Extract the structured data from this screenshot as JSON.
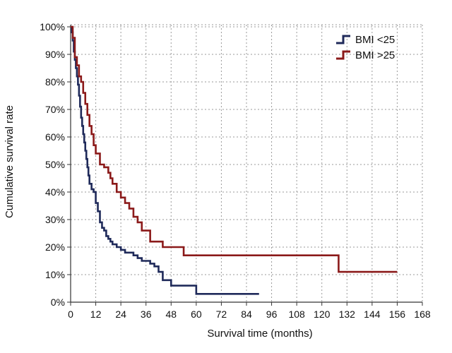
{
  "chart_data": {
    "type": "line",
    "subtype": "kaplan-meier-step",
    "title": "",
    "xlabel": "Survival time (months)",
    "ylabel": "Cumulative survival rate",
    "xlim": [
      0,
      168
    ],
    "ylim": [
      0,
      100
    ],
    "x_ticks": [
      0,
      12,
      24,
      36,
      48,
      60,
      72,
      84,
      96,
      108,
      120,
      132,
      144,
      156,
      168
    ],
    "y_ticks": [
      0,
      10,
      20,
      30,
      40,
      50,
      60,
      70,
      80,
      90,
      100
    ],
    "y_tick_labels": [
      "0%",
      "10%",
      "20%",
      "30%",
      "40%",
      "50%",
      "60%",
      "70%",
      "80%",
      "90%",
      "100%"
    ],
    "grid": true,
    "grid_style": "dotted",
    "legend_position": "top-right",
    "series": [
      {
        "name": "BMI <25",
        "color": "#1f2a5a",
        "x": [
          0,
          0.5,
          1,
          1.5,
          2,
          2.5,
          3,
          3.5,
          4,
          4.5,
          5,
          5.5,
          6,
          6.5,
          7,
          7.5,
          8,
          8.5,
          9,
          10,
          11,
          12,
          13,
          14,
          15,
          16,
          17,
          18,
          19,
          20,
          22,
          24,
          26,
          28,
          30,
          32,
          34,
          36,
          38,
          40,
          42,
          44,
          46,
          48,
          50,
          60,
          90
        ],
        "y": [
          100,
          98,
          95,
          91,
          88,
          85,
          82,
          79,
          75,
          71,
          67,
          64,
          61,
          58,
          55,
          52,
          49,
          46,
          43,
          41,
          40,
          36,
          33,
          29,
          27,
          26,
          24,
          23,
          22,
          21,
          20,
          19,
          18,
          18,
          17,
          16,
          15,
          15,
          14,
          13,
          11,
          8,
          8,
          6,
          6,
          3,
          3
        ]
      },
      {
        "name": "BMI >25",
        "color": "#8b1a1a",
        "x": [
          0,
          1,
          2,
          3,
          4,
          5,
          6,
          7,
          8,
          9,
          10,
          11,
          12,
          14,
          16,
          18,
          19,
          20,
          22,
          24,
          26,
          28,
          30,
          32,
          34,
          36,
          38,
          44,
          48,
          54,
          60,
          80,
          100,
          120,
          128,
          132,
          156
        ],
        "y": [
          100,
          96,
          89,
          86,
          82,
          80,
          76,
          72,
          68,
          64,
          61,
          57,
          54,
          50,
          49,
          47,
          45,
          43,
          40,
          38,
          36,
          34,
          31,
          29,
          26,
          26,
          22,
          20,
          20,
          17,
          17,
          17,
          17,
          17,
          11,
          11,
          11
        ]
      }
    ]
  }
}
